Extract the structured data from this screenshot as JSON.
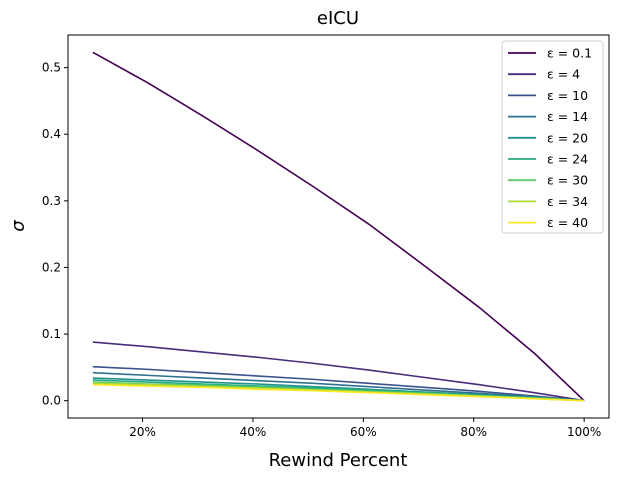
{
  "chart_data": {
    "type": "line",
    "title": "eICU",
    "xlabel": "Rewind Percent",
    "ylabel": "σ",
    "x": [
      11,
      21,
      31,
      41,
      51,
      61,
      71,
      81,
      91,
      100
    ],
    "xlim": [
      6.5,
      104.5
    ],
    "ylim": [
      -0.026,
      0.549
    ],
    "xticks": [
      20,
      40,
      60,
      80,
      100
    ],
    "xtick_labels": [
      "20%",
      "40%",
      "60%",
      "80%",
      "100%"
    ],
    "yticks": [
      0.0,
      0.1,
      0.2,
      0.3,
      0.4,
      0.5
    ],
    "ytick_labels": [
      "0.0",
      "0.1",
      "0.2",
      "0.3",
      "0.4",
      "0.5"
    ],
    "grid": false,
    "legend_position": "top-right",
    "series": [
      {
        "name": "ε = 0.1",
        "color": "#440154",
        "values": [
          0.523,
          0.477,
          0.427,
          0.375,
          0.321,
          0.265,
          0.203,
          0.14,
          0.071,
          0.0
        ]
      },
      {
        "name": "ε = 4",
        "color": "#472d7b",
        "values": [
          0.088,
          0.081,
          0.073,
          0.065,
          0.056,
          0.046,
          0.035,
          0.024,
          0.012,
          0.0
        ]
      },
      {
        "name": "ε = 10",
        "color": "#3b528b",
        "values": [
          0.051,
          0.047,
          0.042,
          0.037,
          0.032,
          0.026,
          0.02,
          0.014,
          0.007,
          0.0
        ]
      },
      {
        "name": "ε = 14",
        "color": "#2c728e",
        "values": [
          0.042,
          0.038,
          0.034,
          0.03,
          0.026,
          0.021,
          0.016,
          0.011,
          0.006,
          0.0
        ]
      },
      {
        "name": "ε = 20",
        "color": "#21918c",
        "values": [
          0.034,
          0.031,
          0.028,
          0.025,
          0.021,
          0.017,
          0.013,
          0.009,
          0.005,
          0.0
        ]
      },
      {
        "name": "ε = 24",
        "color": "#27ad81",
        "values": [
          0.031,
          0.028,
          0.025,
          0.022,
          0.019,
          0.016,
          0.012,
          0.008,
          0.004,
          0.0
        ]
      },
      {
        "name": "ε = 30",
        "color": "#5ec962",
        "values": [
          0.028,
          0.025,
          0.023,
          0.02,
          0.017,
          0.014,
          0.011,
          0.007,
          0.004,
          0.0
        ]
      },
      {
        "name": "ε = 34",
        "color": "#aadc32",
        "values": [
          0.026,
          0.024,
          0.021,
          0.019,
          0.016,
          0.013,
          0.01,
          0.007,
          0.003,
          0.0
        ]
      },
      {
        "name": "ε = 40",
        "color": "#fde725",
        "values": [
          0.024,
          0.022,
          0.02,
          0.017,
          0.015,
          0.012,
          0.009,
          0.006,
          0.003,
          0.0
        ]
      }
    ]
  }
}
